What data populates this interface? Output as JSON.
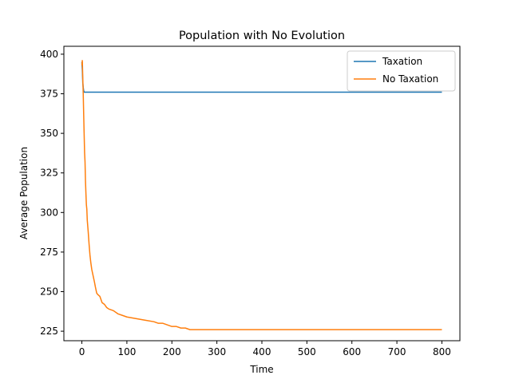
{
  "chart_data": {
    "type": "line",
    "title": "Population with No Evolution",
    "xlabel": "Time",
    "ylabel": "Average Population",
    "xlim": [
      -40,
      840
    ],
    "ylim": [
      219,
      405
    ],
    "xticks": [
      0,
      100,
      200,
      300,
      400,
      500,
      600,
      700,
      800
    ],
    "yticks": [
      225,
      250,
      275,
      300,
      325,
      350,
      375,
      400
    ],
    "grid": false,
    "legend_position": "top-right",
    "series": [
      {
        "name": "Taxation",
        "color": "#1f77b4",
        "x": [
          0,
          1,
          2,
          3,
          4,
          5,
          800
        ],
        "y": [
          395,
          390,
          382,
          379,
          377,
          376,
          376
        ]
      },
      {
        "name": "No Taxation",
        "color": "#ff7f0e",
        "x": [
          0,
          1,
          2,
          3,
          4,
          5,
          6,
          7,
          8,
          9,
          10,
          11,
          12,
          14,
          16,
          18,
          20,
          22,
          25,
          28,
          30,
          33,
          36,
          40,
          45,
          50,
          55,
          60,
          70,
          80,
          90,
          100,
          120,
          140,
          160,
          170,
          180,
          190,
          200,
          210,
          220,
          230,
          240,
          800
        ],
        "y": [
          393,
          396,
          385,
          375,
          362,
          350,
          338,
          332,
          320,
          312,
          305,
          302,
          295,
          288,
          280,
          273,
          268,
          264,
          260,
          256,
          253,
          249,
          248,
          247,
          243,
          242,
          240,
          239,
          238,
          236,
          235,
          234,
          233,
          232,
          231,
          230,
          230,
          229,
          228,
          228,
          227,
          227,
          226,
          226
        ]
      }
    ]
  }
}
